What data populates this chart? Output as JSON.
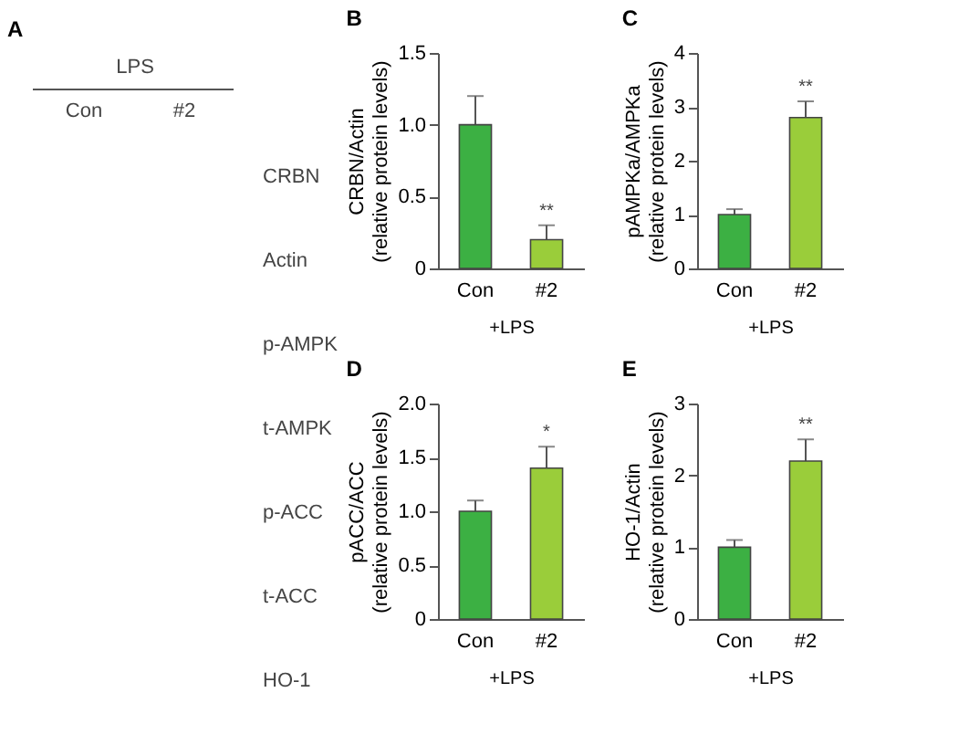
{
  "chart_data": [
    {
      "type": "other",
      "title": "A",
      "annotations": [
        "LPS",
        "Con",
        "#2",
        "CRBN",
        "Actin",
        "p-AMPK",
        "t-AMPK",
        "p-ACC",
        "t-ACC",
        "HO-1"
      ]
    },
    {
      "type": "bar",
      "title": "B",
      "ylabel": "CRBN/Actin\n(relative protein levels)",
      "xlabel": "+LPS",
      "categories": [
        "Con",
        "#2"
      ],
      "values": [
        1.0,
        0.2
      ],
      "errors": [
        0.2,
        0.1
      ],
      "colors": [
        "#3cb043",
        "#9acd3a"
      ],
      "ylim": [
        0,
        1.5
      ],
      "yticks": [
        0,
        {
          "value": 0.5,
          "label": "0.5"
        },
        {
          "value": 1,
          "label": "1.0"
        },
        {
          "value": 1.5,
          "label": "1.5"
        }
      ],
      "grid": false,
      "annotations": [
        "**"
      ]
    },
    {
      "type": "bar",
      "title": "C",
      "ylabel": "pAMPKa/AMPKa\n(relative protein levels)",
      "xlabel": "+LPS",
      "categories": [
        "Con",
        "#2"
      ],
      "values": [
        1.0,
        2.8
      ],
      "errors": [
        0.1,
        0.3
      ],
      "colors": [
        "#3cb043",
        "#9acd3a"
      ],
      "ylim": [
        0,
        4
      ],
      "yticks": [
        0,
        1,
        2,
        3,
        4
      ],
      "grid": false,
      "annotations": [
        "**"
      ]
    },
    {
      "type": "bar",
      "title": "D",
      "ylabel": "pACC/ACC\n(relative protein levels)",
      "xlabel": "+LPS",
      "categories": [
        "Con",
        "#2"
      ],
      "values": [
        1.0,
        1.4
      ],
      "errors": [
        0.1,
        0.2
      ],
      "colors": [
        "#3cb043",
        "#9acd3a"
      ],
      "ylim": [
        0,
        2
      ],
      "yticks": [
        0,
        {
          "value": 0.5,
          "label": "0.5"
        },
        {
          "value": 1,
          "label": "1.0"
        },
        {
          "value": 1.5,
          "label": "1.5"
        },
        {
          "value": 2,
          "label": "2.0"
        }
      ],
      "grid": false,
      "annotations": [
        "*"
      ]
    },
    {
      "type": "bar",
      "title": "E",
      "ylabel": "HO-1/Actin\n(relative protein levels)",
      "xlabel": "+LPS",
      "categories": [
        "Con",
        "#2"
      ],
      "values": [
        1.0,
        2.2
      ],
      "errors": [
        0.1,
        0.3
      ],
      "colors": [
        "#3cb043",
        "#9acd3a"
      ],
      "ylim": [
        0,
        3
      ],
      "yticks": [
        0,
        1,
        2,
        3
      ],
      "grid": false,
      "annotations": [
        "**"
      ]
    }
  ]
}
